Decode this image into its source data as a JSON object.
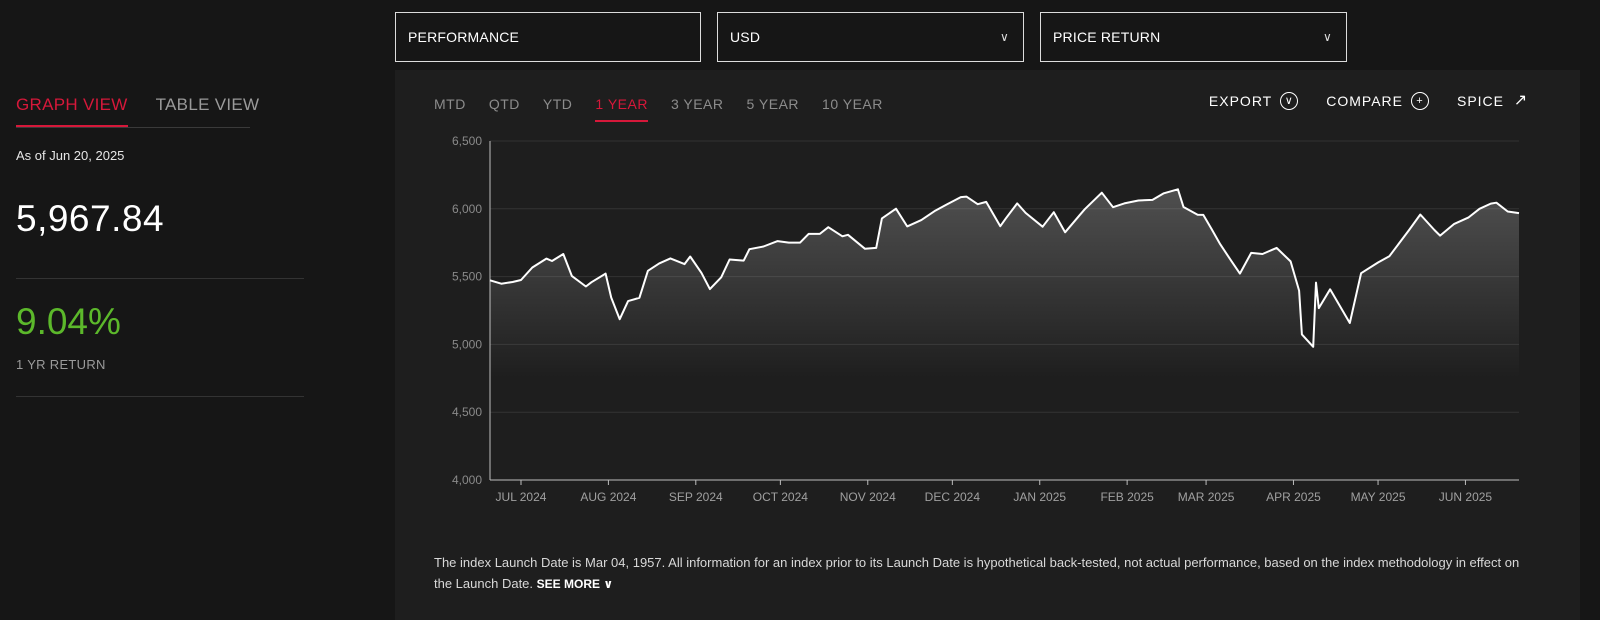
{
  "dropdowns": {
    "performance": "PERFORMANCE",
    "currency": "USD",
    "return_type": "PRICE RETURN"
  },
  "views": [
    "GRAPH VIEW",
    "TABLE VIEW"
  ],
  "summary": {
    "as_of": "As of Jun 20, 2025",
    "price": "5,967.84",
    "return_value": "9.04%",
    "return_label": "1 YR RETURN"
  },
  "periods": [
    "MTD",
    "QTD",
    "YTD",
    "1 YEAR",
    "3 YEAR",
    "5 YEAR",
    "10 YEAR"
  ],
  "active_period": "1 YEAR",
  "actions": {
    "export": "EXPORT",
    "compare": "COMPARE",
    "spice": "SPICE"
  },
  "disclaimer": {
    "text": "The index Launch Date is Mar 04, 1957. All information for an index prior to its Launch Date is hypothetical back-tested, not actual performance, based on the index methodology in effect on the Launch Date.",
    "see_more": "SEE MORE"
  },
  "colors": {
    "accent": "#d6183a",
    "positive": "#5cb82b",
    "line": "#ffffff"
  },
  "chart_data": {
    "type": "area",
    "y_ticks": [
      "6,500",
      "6,000",
      "5,500",
      "5,000",
      "4,500",
      "4,000"
    ],
    "ylim": [
      4000,
      6500
    ],
    "x_ticks": [
      "JUL 2024",
      "AUG 2024",
      "SEP 2024",
      "OCT 2024",
      "NOV 2024",
      "DEC 2024",
      "JAN 2025",
      "FEB 2025",
      "MAR 2025",
      "APR 2025",
      "MAY 2025",
      "JUN 2025"
    ],
    "xlim": [
      "2024-06-20",
      "2025-06-20"
    ],
    "grid": "horizontal",
    "x": [
      "2024-06-20",
      "2024-06-24",
      "2024-06-28",
      "2024-07-01",
      "2024-07-05",
      "2024-07-10",
      "2024-07-12",
      "2024-07-16",
      "2024-07-19",
      "2024-07-24",
      "2024-07-26",
      "2024-07-31",
      "2024-08-02",
      "2024-08-05",
      "2024-08-08",
      "2024-08-12",
      "2024-08-15",
      "2024-08-19",
      "2024-08-23",
      "2024-08-28",
      "2024-08-30",
      "2024-09-03",
      "2024-09-06",
      "2024-09-10",
      "2024-09-13",
      "2024-09-18",
      "2024-09-20",
      "2024-09-25",
      "2024-09-30",
      "2024-10-04",
      "2024-10-08",
      "2024-10-11",
      "2024-10-15",
      "2024-10-18",
      "2024-10-23",
      "2024-10-25",
      "2024-10-31",
      "2024-11-04",
      "2024-11-06",
      "2024-11-11",
      "2024-11-15",
      "2024-11-20",
      "2024-11-25",
      "2024-11-29",
      "2024-12-04",
      "2024-12-06",
      "2024-12-10",
      "2024-12-13",
      "2024-12-18",
      "2024-12-20",
      "2024-12-24",
      "2024-12-27",
      "2025-01-02",
      "2025-01-06",
      "2025-01-10",
      "2025-01-15",
      "2025-01-17",
      "2025-01-23",
      "2025-01-27",
      "2025-01-31",
      "2025-02-05",
      "2025-02-10",
      "2025-02-14",
      "2025-02-19",
      "2025-02-21",
      "2025-02-26",
      "2025-02-28",
      "2025-03-03",
      "2025-03-06",
      "2025-03-10",
      "2025-03-13",
      "2025-03-17",
      "2025-03-21",
      "2025-03-26",
      "2025-03-31",
      "2025-04-03",
      "2025-04-04",
      "2025-04-08",
      "2025-04-09",
      "2025-04-10",
      "2025-04-14",
      "2025-04-21",
      "2025-04-25",
      "2025-05-01",
      "2025-05-05",
      "2025-05-12",
      "2025-05-16",
      "2025-05-21",
      "2025-05-23",
      "2025-05-28",
      "2025-06-02",
      "2025-06-06",
      "2025-06-10",
      "2025-06-12",
      "2025-06-16",
      "2025-06-20"
    ],
    "values": [
      5473,
      5448,
      5460,
      5475,
      5567,
      5633,
      5615,
      5667,
      5505,
      5427,
      5459,
      5522,
      5346,
      5186,
      5319,
      5344,
      5543,
      5597,
      5634,
      5592,
      5648,
      5528,
      5408,
      5495,
      5626,
      5618,
      5702,
      5722,
      5762,
      5751,
      5751,
      5815,
      5815,
      5864,
      5797,
      5808,
      5705,
      5712,
      5929,
      6001,
      5870,
      5917,
      5987,
      6032,
      6086,
      6090,
      6034,
      6051,
      5872,
      5930,
      6040,
      5970,
      5868,
      5975,
      5827,
      5949,
      5997,
      6119,
      6012,
      6040,
      6061,
      6066,
      6114,
      6144,
      6013,
      5956,
      5955,
      5849,
      5739,
      5614,
      5522,
      5675,
      5667,
      5712,
      5612,
      5397,
      5074,
      4982,
      5456,
      5268,
      5406,
      5158,
      5525,
      5604,
      5650,
      5844,
      5958,
      5844,
      5802,
      5889,
      5935,
      6000,
      6038,
      6045,
      5980,
      5968
    ]
  }
}
